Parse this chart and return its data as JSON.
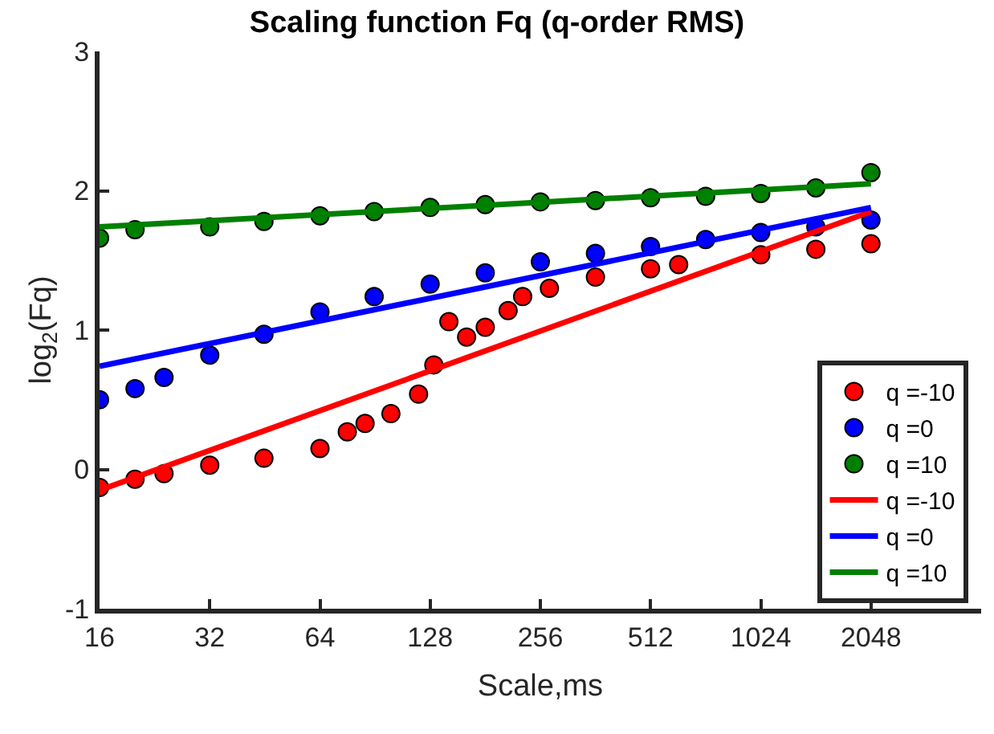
{
  "chart_data": {
    "type": "scatter",
    "title": "Scaling function Fq (q-order RMS)",
    "xlabel": "Scale,ms",
    "ylabel": "log$_{2}$(Fq)",
    "log": "x",
    "xlim": [
      16,
      4096
    ],
    "xticks": [
      16,
      32,
      64,
      128,
      256,
      512,
      1024,
      2048
    ],
    "ylim": [
      -1,
      3
    ],
    "yticks": [
      -1,
      0,
      1,
      2,
      3
    ],
    "grid": false,
    "legend": "bottom right",
    "series": [
      {
        "name": "q =-10",
        "marker": "circle",
        "color": "#ff0000",
        "x": [
          16,
          20,
          24,
          32,
          45,
          64,
          76,
          85,
          100,
          119,
          131,
          144,
          161,
          181,
          209,
          229,
          271,
          362,
          512,
          611,
          1024,
          1448,
          2048
        ],
        "values": [
          -0.13,
          -0.07,
          -0.03,
          0.03,
          0.08,
          0.15,
          0.27,
          0.33,
          0.4,
          0.54,
          0.75,
          1.06,
          0.95,
          1.02,
          1.14,
          1.24,
          1.3,
          1.38,
          1.44,
          1.47,
          1.54,
          1.58,
          1.62
        ]
      },
      {
        "name": "q =0",
        "marker": "circle",
        "color": "#0000ff",
        "x": [
          16,
          20,
          24,
          32,
          45,
          64,
          90,
          128,
          181,
          256,
          362,
          512,
          724,
          1024,
          1448,
          2048
        ],
        "values": [
          0.5,
          0.58,
          0.66,
          0.82,
          0.97,
          1.13,
          1.24,
          1.33,
          1.41,
          1.49,
          1.55,
          1.6,
          1.65,
          1.7,
          1.74,
          1.79
        ]
      },
      {
        "name": "q =10",
        "marker": "circle",
        "color": "#008000",
        "x": [
          16,
          20,
          32,
          45,
          64,
          90,
          128,
          181,
          256,
          362,
          512,
          724,
          1024,
          1448,
          2048
        ],
        "values": [
          1.66,
          1.72,
          1.74,
          1.78,
          1.82,
          1.85,
          1.88,
          1.9,
          1.92,
          1.93,
          1.95,
          1.96,
          1.98,
          2.02,
          2.13
        ]
      },
      {
        "name": "q =-10",
        "type": "line",
        "marker": "none",
        "color": "#ff0000",
        "x": [
          16,
          2048
        ],
        "values": [
          -0.15,
          1.85
        ]
      },
      {
        "name": "q =0",
        "type": "line",
        "marker": "none",
        "color": "#0000ff",
        "x": [
          16,
          2048
        ],
        "values": [
          0.74,
          1.88
        ]
      },
      {
        "name": "q =10",
        "type": "line",
        "marker": "none",
        "color": "#008000",
        "x": [
          16,
          2048
        ],
        "values": [
          1.74,
          2.05
        ]
      }
    ]
  }
}
